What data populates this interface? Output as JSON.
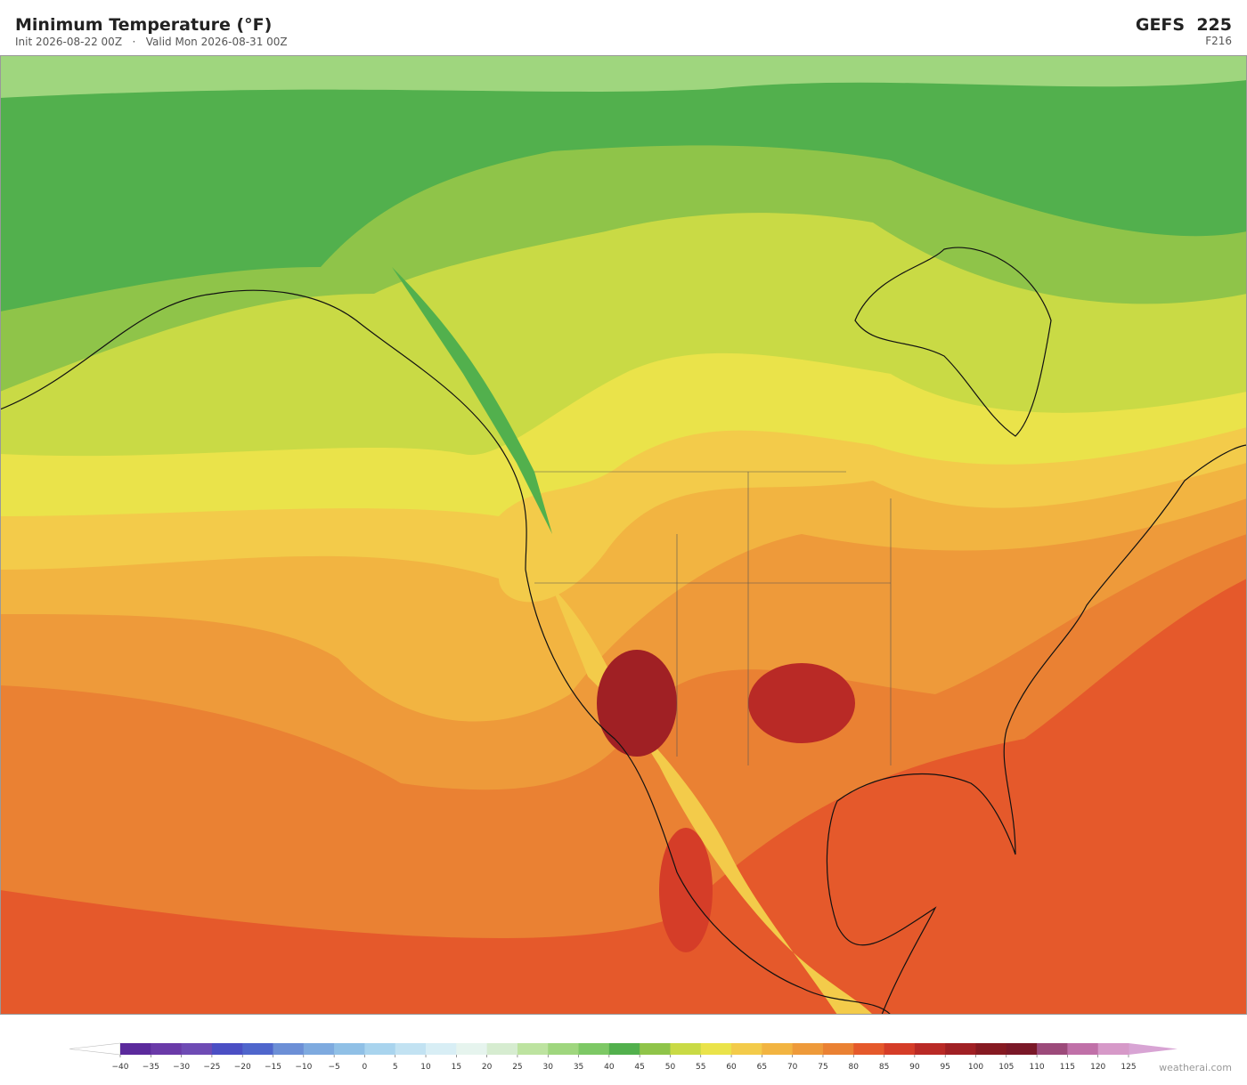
{
  "header": {
    "title": "Minimum Temperature  (°F)",
    "subtitle": "Init 2026-08-22 00Z   ·   Valid Mon 2026-08-31 00Z",
    "model": "GEFS  225",
    "forecast_hour": "F216"
  },
  "colorbar": {
    "ticks": [
      {
        "value": -40,
        "label": "−40"
      },
      {
        "value": -35,
        "label": "−35"
      },
      {
        "value": -30,
        "label": "−30"
      },
      {
        "value": -25,
        "label": "−25"
      },
      {
        "value": -20,
        "label": "−20"
      },
      {
        "value": -15,
        "label": "−15"
      },
      {
        "value": -10,
        "label": "−10"
      },
      {
        "value": -5,
        "label": "−5"
      },
      0,
      5,
      10,
      15,
      20,
      25,
      30,
      35,
      40,
      45,
      50,
      55,
      60,
      65,
      70,
      75,
      80,
      85,
      90,
      95,
      100,
      105,
      110,
      115,
      120,
      125
    ],
    "colors": [
      "#5b2a9c",
      "#6a3aa8",
      "#6e4bb4",
      "#4b4fc4",
      "#4f66cc",
      "#6c8fd6",
      "#7eaadf",
      "#90c0e6",
      "#a9d4ee",
      "#c2e2f2",
      "#d8eef5",
      "#e6f4ee",
      "#d6ecd0",
      "#bde3a0",
      "#9fd67e",
      "#7dc865",
      "#52b04d",
      "#8fc449",
      "#c9da45",
      "#eae34a",
      "#f3cb4a",
      "#f2b441",
      "#ee9a3a",
      "#ea8133",
      "#e5592b",
      "#d53d28",
      "#b92a26",
      "#a02024",
      "#861a22",
      "#7a1828",
      "#9c4a7a",
      "#c070a8",
      "#d699c8"
    ],
    "under_color": "#ffffff",
    "over_color": "#d8a4d4"
  },
  "footer": {
    "credit": "weatherai.com"
  }
}
